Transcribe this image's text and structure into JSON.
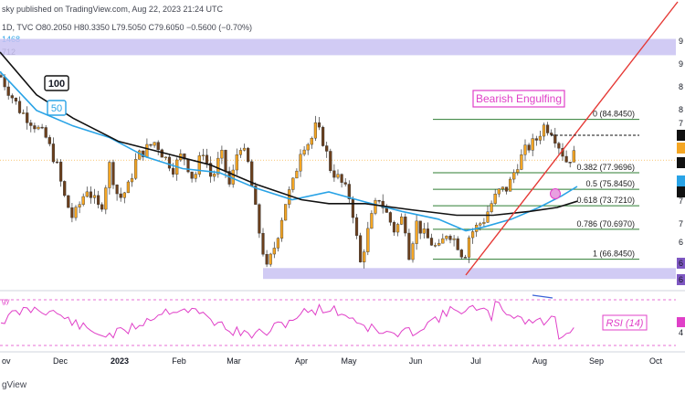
{
  "header": {
    "publisher_line": "sky published on TradingView.com, Aug 22, 2023 21:24 UTC",
    "ohlc_line": "1D, TVC  O80.2050  H80.3350  L79.5050  C79.6050  −0.5600 (−0.70%)",
    "sma50_value": "1468",
    "sma100_value": "712"
  },
  "footer": {
    "brand": "gView"
  },
  "colors": {
    "up_candle": "#f5a623",
    "up_wick": "#333333",
    "down_candle": "#6b3f1c",
    "sma100": "#111111",
    "sma50": "#29a3e6",
    "fib_line": "#2e7d32",
    "trendline": "#e53935",
    "support_zone": "#c9c2f2",
    "annotation": "#e040c8",
    "rsi": "#e040c8"
  },
  "chart_data": {
    "type": "candlestick",
    "title": "",
    "xlabel": "",
    "ylabel": "",
    "x_ticks": [
      "ov",
      "Dec",
      "2023",
      "Feb",
      "Mar",
      "Apr",
      "May",
      "Jun",
      "Jul",
      "Aug",
      "Sep",
      "Oct"
    ],
    "ylim": [
      63.5,
      95.5
    ],
    "series": [
      {
        "name": "100",
        "type": "sma",
        "style": "black"
      },
      {
        "name": "50",
        "type": "sma",
        "style": "blue"
      }
    ],
    "fibonacci_levels": [
      {
        "label": "0 (84.8450)",
        "value": 84.845
      },
      {
        "label": "0.382 (77.9696)",
        "value": 77.9696
      },
      {
        "label": "0.5 (75.8450)",
        "value": 75.845
      },
      {
        "label": "0.618 (73.7210)",
        "value": 73.721
      },
      {
        "label": "0.786 (70.6970)",
        "value": 70.697
      },
      {
        "label": "1 (66.8450)",
        "value": 66.845
      }
    ],
    "annotations": {
      "pattern": "Bearish Engulfing",
      "sma100_label": "100",
      "sma50_label": "50",
      "rsi_label": "RSI (14)"
    },
    "support_zone": {
      "from": 64.3,
      "to": 65.7
    },
    "resistance_zone": {
      "from": 93.1,
      "to": 95.2
    },
    "price_axis_labels": [
      "9",
      "9",
      "8",
      "8",
      "7",
      "7",
      "7",
      "6",
      "6",
      "6"
    ],
    "rsi_axis_labels": [
      "4"
    ],
    "rsi_partial_label": "gy"
  }
}
